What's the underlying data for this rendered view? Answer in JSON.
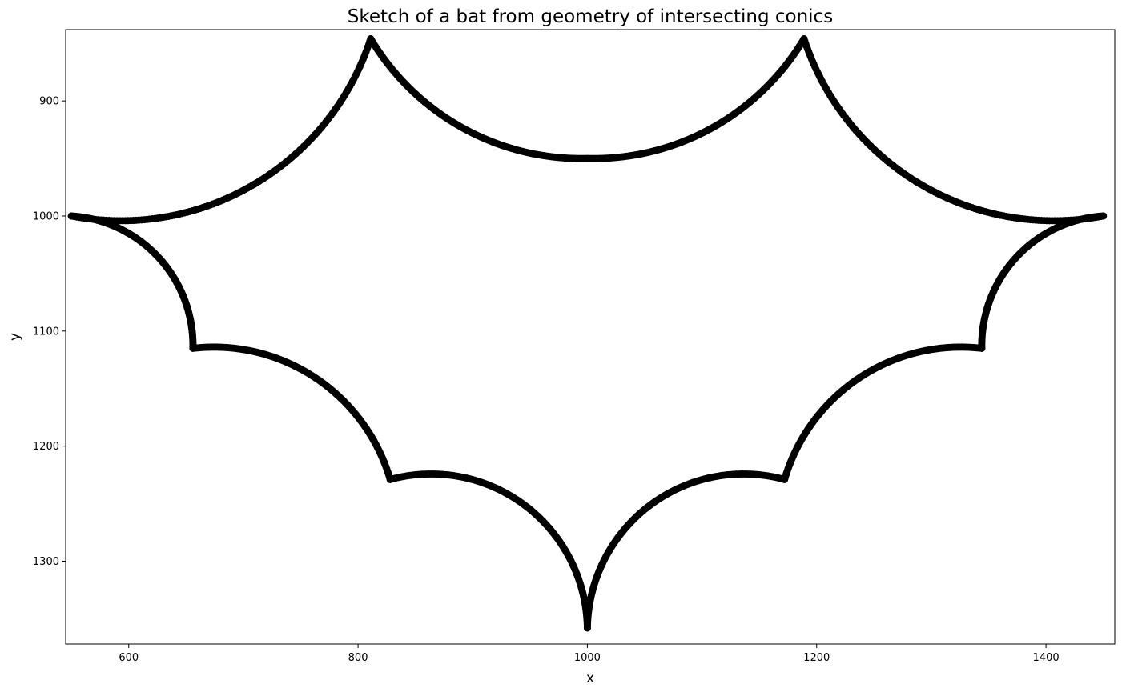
{
  "chart_data": {
    "type": "scatter",
    "title": "Sketch of a bat from geometry of intersecting conics",
    "xlabel": "x",
    "ylabel": "y",
    "xlim": [
      545,
      1460
    ],
    "ylim": [
      1372,
      838
    ],
    "y_inverted": true,
    "grid": false,
    "x_ticks": [
      600,
      800,
      1000,
      1200,
      1400
    ],
    "y_ticks": [
      900,
      1000,
      1100,
      1200,
      1300
    ],
    "marker_color": "#000000",
    "outline_vertices": [
      {
        "x": 550,
        "y": 1000
      },
      {
        "x": 811,
        "y": 846
      },
      {
        "x": 1000,
        "y": 950
      },
      {
        "x": 1189,
        "y": 846
      },
      {
        "x": 1450,
        "y": 1000
      },
      {
        "x": 1344,
        "y": 1115
      },
      {
        "x": 1172,
        "y": 1229
      },
      {
        "x": 1000,
        "y": 1358
      },
      {
        "x": 828,
        "y": 1229
      },
      {
        "x": 656,
        "y": 1115
      }
    ],
    "arcs": [
      {
        "from": 0,
        "to": 1,
        "through": {
          "x": 600,
          "y": 1004
        }
      },
      {
        "from": 1,
        "to": 2,
        "through": {
          "x": 900,
          "y": 928
        }
      },
      {
        "from": 2,
        "to": 3,
        "through": {
          "x": 1100,
          "y": 928
        }
      },
      {
        "from": 3,
        "to": 4,
        "through": {
          "x": 1400,
          "y": 1004
        }
      },
      {
        "from": 4,
        "to": 5,
        "through": {
          "x": 1380,
          "y": 1030
        }
      },
      {
        "from": 5,
        "to": 6,
        "through": {
          "x": 1250,
          "y": 1133
        }
      },
      {
        "from": 6,
        "to": 7,
        "through": {
          "x": 1050,
          "y": 1255
        }
      },
      {
        "from": 7,
        "to": 8,
        "through": {
          "x": 950,
          "y": 1255
        }
      },
      {
        "from": 8,
        "to": 9,
        "through": {
          "x": 750,
          "y": 1133
        }
      },
      {
        "from": 9,
        "to": 0,
        "through": {
          "x": 620,
          "y": 1030
        }
      }
    ]
  }
}
